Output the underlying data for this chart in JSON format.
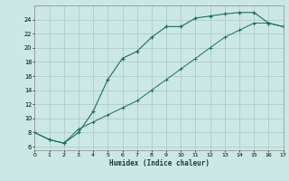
{
  "xlabel": "Humidex (Indice chaleur)",
  "bg_color": "#cce8e4",
  "grid_color": "#b0ccc8",
  "line_color": "#1a6e60",
  "line1_x": [
    0,
    1,
    2,
    3,
    4,
    5,
    6,
    7,
    8,
    9,
    10,
    11,
    12,
    13,
    14,
    15,
    16,
    17
  ],
  "line1_y": [
    8.0,
    7.0,
    6.5,
    8.0,
    11.0,
    15.5,
    18.5,
    19.5,
    21.5,
    23.0,
    23.0,
    24.2,
    24.5,
    24.8,
    25.0,
    25.0,
    23.5,
    23.0
  ],
  "line2_x": [
    0,
    1,
    2,
    3,
    4,
    5,
    6,
    7,
    8,
    9,
    10,
    11,
    12,
    13,
    14,
    15,
    16,
    17
  ],
  "line2_y": [
    8.0,
    7.0,
    6.5,
    8.5,
    9.5,
    10.5,
    11.5,
    12.5,
    14.0,
    15.5,
    17.0,
    18.5,
    20.0,
    21.5,
    22.5,
    23.5,
    23.5,
    23.0
  ],
  "xlim": [
    0,
    17
  ],
  "ylim": [
    5.5,
    26
  ],
  "xticks": [
    0,
    1,
    2,
    3,
    4,
    5,
    6,
    7,
    8,
    9,
    10,
    11,
    12,
    13,
    14,
    15,
    16,
    17
  ],
  "yticks": [
    6,
    8,
    10,
    12,
    14,
    16,
    18,
    20,
    22,
    24
  ]
}
